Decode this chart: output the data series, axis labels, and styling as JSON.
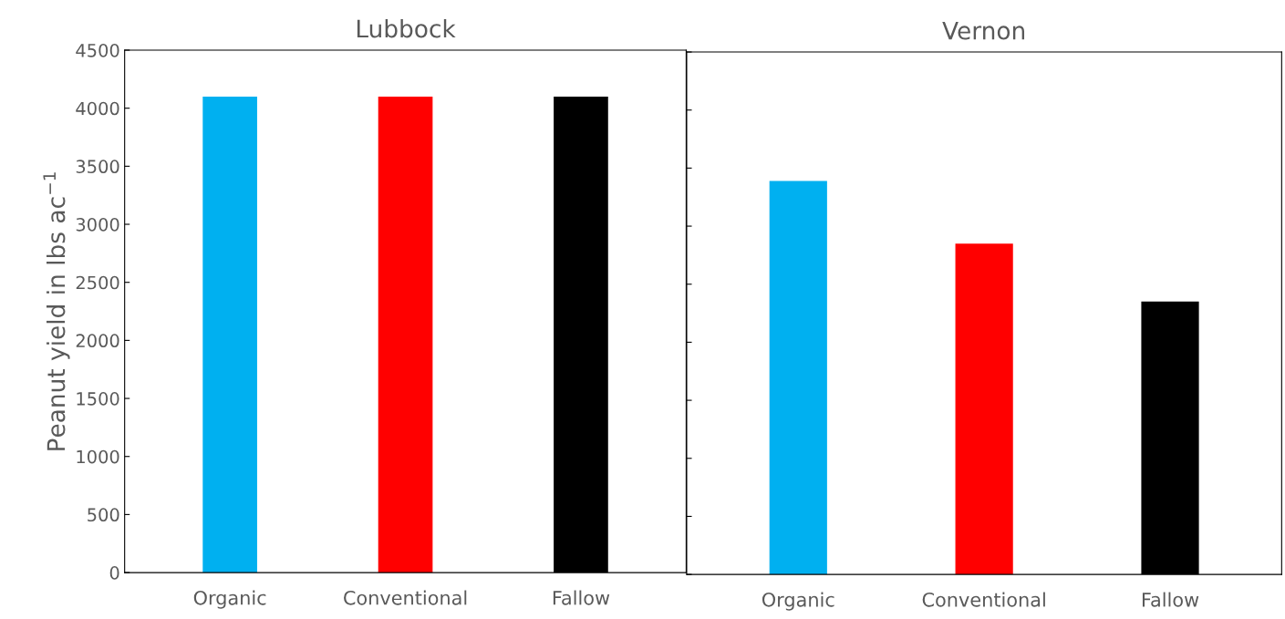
{
  "chart_data": [
    {
      "type": "bar",
      "title": "Lubbock",
      "ylabel": "Peanut yield in lbs ac$^{−1}$",
      "categories": [
        "Organic",
        "Conventional",
        "Fallow"
      ],
      "values": [
        4100,
        4100,
        4100
      ],
      "colors": [
        "#00b0f0",
        "#ff0000",
        "#000000"
      ],
      "ylim": [
        0,
        4500
      ],
      "yticks": [
        0,
        500,
        1000,
        1500,
        2000,
        2500,
        3000,
        3500,
        4000,
        4500
      ],
      "grid": false
    },
    {
      "type": "bar",
      "title": "Vernon",
      "categories": [
        "Organic",
        "Conventional",
        "Fallow"
      ],
      "values": [
        3390,
        2850,
        2350
      ],
      "colors": [
        "#00b0f0",
        "#ff0000",
        "#000000"
      ],
      "ylim": [
        0,
        4500
      ],
      "yticks": [
        0,
        500,
        1000,
        1500,
        2000,
        2500,
        3000,
        3500,
        4000,
        4500
      ],
      "tick_labels": "x",
      "grid": false
    }
  ]
}
